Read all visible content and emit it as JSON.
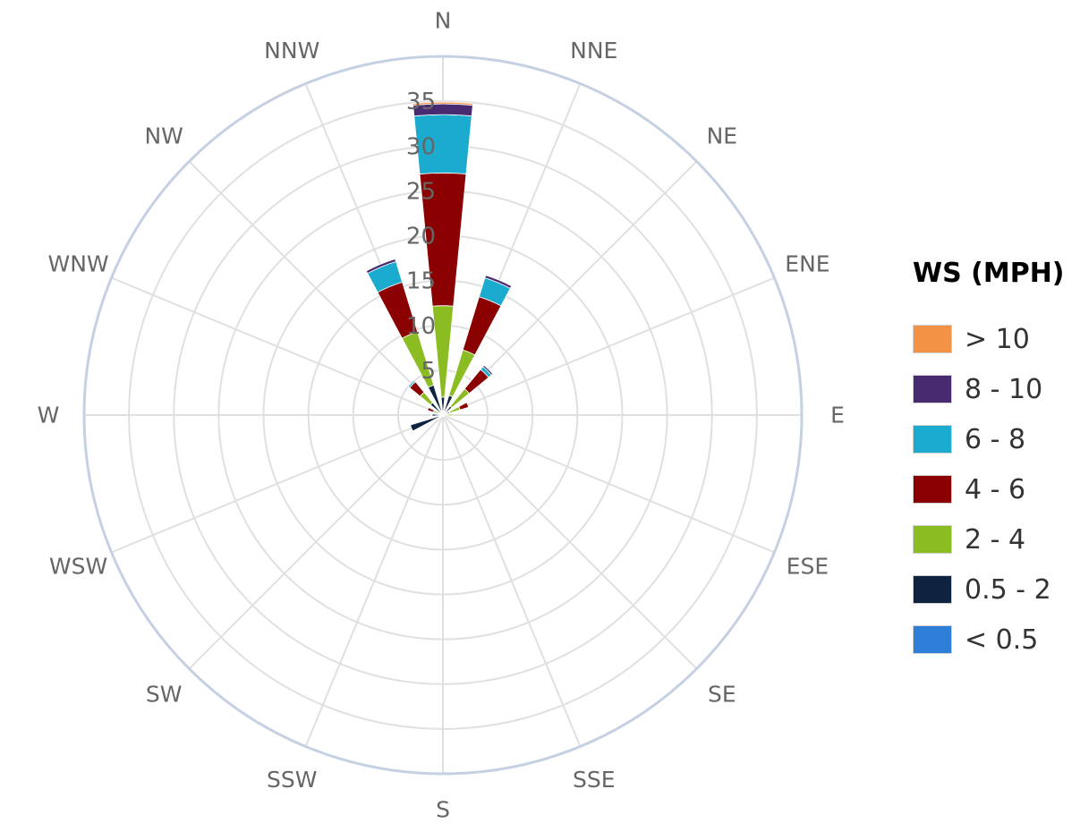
{
  "chart_data": {
    "type": "barpolar",
    "title": "",
    "directions": [
      "N",
      "NNE",
      "NE",
      "ENE",
      "E",
      "ESE",
      "SE",
      "SSE",
      "S",
      "SSW",
      "SW",
      "WSW",
      "W",
      "WNW",
      "NW",
      "NNW"
    ],
    "radial_ticks": [
      "5",
      "10",
      "15",
      "20",
      "25",
      "30",
      "35"
    ],
    "radial_range": [
      0,
      40
    ],
    "grid": true,
    "legend": {
      "title": "WS (MPH)",
      "placement": "right"
    },
    "series": [
      {
        "name": "< 0.5",
        "color": "#2e7fd8",
        "values": [
          0,
          0,
          0,
          0,
          0,
          0,
          0,
          0,
          0,
          0,
          0,
          0,
          0,
          0,
          0,
          0
        ]
      },
      {
        "name": "0.5 - 2",
        "color": "#0e2340",
        "values": [
          2,
          2.3,
          1.3,
          0.8,
          0.5,
          0.3,
          0.2,
          0.1,
          0.1,
          0.2,
          0.4,
          3.8,
          1.2,
          0.3,
          1.8,
          3.5
        ]
      },
      {
        "name": "2 - 4",
        "color": "#8bbd23",
        "values": [
          10.2,
          5.3,
          2.5,
          1.2,
          0.5,
          0,
          0,
          0,
          0,
          0,
          0,
          0,
          0.1,
          0.8,
          1.5,
          6.2
        ]
      },
      {
        "name": "4 - 6",
        "color": "#8b0000",
        "values": [
          14.8,
          6.2,
          2.8,
          1.0,
          0,
          0,
          0,
          0,
          0,
          0,
          0,
          0,
          0,
          0.7,
          1.5,
          5.8
        ]
      },
      {
        "name": "6 - 8",
        "color": "#1aabce",
        "values": [
          6.5,
          2.2,
          0.4,
          0,
          0,
          0,
          0,
          0,
          0,
          0,
          0,
          0,
          0,
          0,
          0.2,
          2.4
        ]
      },
      {
        "name": "8 - 10",
        "color": "#482a70",
        "values": [
          1.2,
          0.3,
          0.2,
          0,
          0,
          0,
          0,
          0,
          0,
          0,
          0,
          0,
          0,
          0,
          0.1,
          0.3
        ]
      },
      {
        "name": "> 10",
        "color": "#f39144",
        "values": [
          0.2,
          0,
          0,
          0,
          0,
          0,
          0,
          0,
          0,
          0,
          0.3,
          0,
          0,
          0,
          0,
          0
        ]
      }
    ]
  }
}
